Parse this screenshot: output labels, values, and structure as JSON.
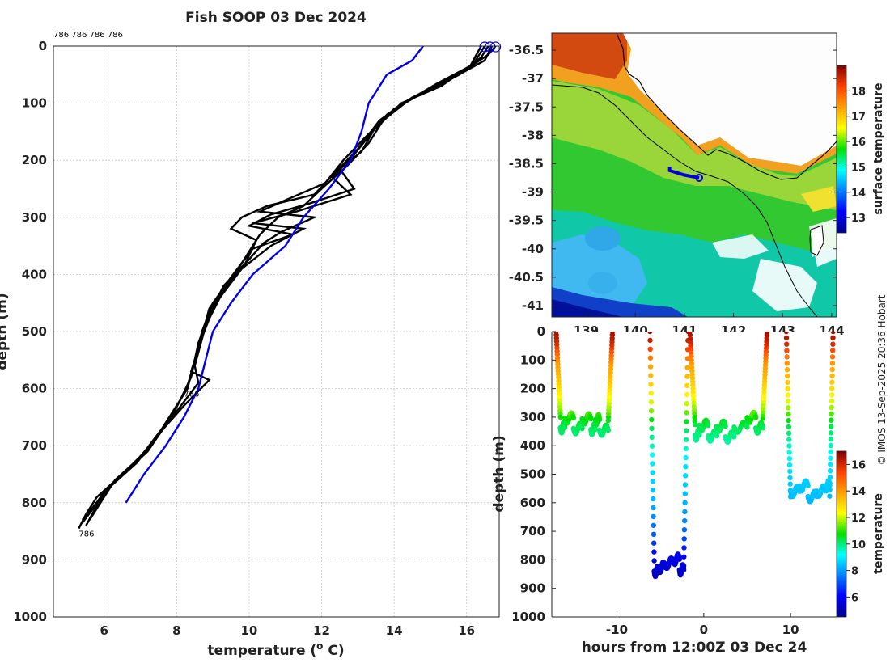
{
  "title": "Fish SOOP 03 Dec 2024",
  "credit": "© IMOS 13-Sep-2025 20:36 Hobart",
  "chart_data": [
    {
      "id": "profile",
      "type": "line",
      "xlabel": "temperature (°C)",
      "xlabel_parts": {
        "pre": "temperature (",
        "sup": "o",
        "post": " C)"
      },
      "ylabel": "depth (m)",
      "xlim": [
        4.6,
        16.9
      ],
      "ylim": [
        0,
        1000
      ],
      "xticks": [
        6,
        8,
        10,
        12,
        14,
        16
      ],
      "yticks": [
        0,
        100,
        200,
        300,
        400,
        500,
        600,
        700,
        800,
        900,
        1000
      ],
      "grid": true,
      "top_labels": "786 786 786 786",
      "annotations": [
        {
          "text": "786",
          "x": 8.2,
          "y": 600
        },
        {
          "text": "786",
          "x": 5.3,
          "y": 845
        }
      ],
      "surface_markers_x": [
        16.5,
        16.65,
        16.8
      ],
      "climatology": {
        "name": "climatology",
        "color": "#0000ee",
        "points": [
          [
            14.8,
            0
          ],
          [
            14.5,
            25
          ],
          [
            13.8,
            50
          ],
          [
            13.5,
            80
          ],
          [
            13.3,
            100
          ],
          [
            13.1,
            150
          ],
          [
            12.8,
            200
          ],
          [
            12.2,
            250
          ],
          [
            11.5,
            300
          ],
          [
            11.0,
            350
          ],
          [
            10.1,
            400
          ],
          [
            9.5,
            450
          ],
          [
            9.0,
            500
          ],
          [
            8.6,
            600
          ],
          [
            8.2,
            650
          ],
          [
            7.7,
            700
          ],
          [
            7.1,
            750
          ],
          [
            6.6,
            800
          ]
        ]
      },
      "casts": [
        {
          "name": "cast-1",
          "color": "#000000",
          "points": [
            [
              16.6,
              0
            ],
            [
              16.4,
              20
            ],
            [
              15.8,
              50
            ],
            [
              14.8,
              80
            ],
            [
              13.8,
              120
            ],
            [
              13.3,
              170
            ],
            [
              12.7,
              210
            ],
            [
              12.0,
              250
            ],
            [
              11.5,
              280
            ],
            [
              10.8,
              300
            ],
            [
              10.3,
              330
            ],
            [
              10.0,
              360
            ],
            [
              9.6,
              400
            ],
            [
              9.0,
              450
            ],
            [
              8.7,
              500
            ],
            [
              8.5,
              550
            ],
            [
              8.3,
              600
            ],
            [
              7.8,
              650
            ],
            [
              7.3,
              700
            ],
            [
              6.5,
              750
            ],
            [
              5.8,
              790
            ],
            [
              5.5,
              820
            ],
            [
              5.3,
              845
            ]
          ]
        },
        {
          "name": "cast-2",
          "color": "#000000",
          "points": [
            [
              16.7,
              0
            ],
            [
              16.5,
              25
            ],
            [
              15.5,
              60
            ],
            [
              14.5,
              90
            ],
            [
              13.6,
              130
            ],
            [
              13.0,
              180
            ],
            [
              12.4,
              220
            ],
            [
              11.8,
              260
            ],
            [
              10.5,
              280
            ],
            [
              9.8,
              300
            ],
            [
              9.5,
              320
            ],
            [
              10.2,
              340
            ],
            [
              9.9,
              380
            ],
            [
              9.3,
              420
            ],
            [
              8.9,
              470
            ],
            [
              8.6,
              520
            ],
            [
              8.4,
              580
            ],
            [
              8.1,
              620
            ],
            [
              7.6,
              670
            ],
            [
              7.0,
              720
            ],
            [
              6.3,
              760
            ],
            [
              5.9,
              800
            ],
            [
              5.6,
              830
            ]
          ]
        },
        {
          "name": "cast-3",
          "color": "#000000",
          "points": [
            [
              16.5,
              0
            ],
            [
              16.2,
              30
            ],
            [
              15.3,
              70
            ],
            [
              14.2,
              100
            ],
            [
              13.4,
              150
            ],
            [
              12.9,
              190
            ],
            [
              12.3,
              230
            ],
            [
              12.8,
              260
            ],
            [
              11.3,
              290
            ],
            [
              10.1,
              310
            ],
            [
              11.5,
              320
            ],
            [
              10.6,
              350
            ],
            [
              9.8,
              390
            ],
            [
              9.2,
              440
            ],
            [
              8.8,
              490
            ],
            [
              8.5,
              560
            ],
            [
              8.6,
              590
            ],
            [
              8.0,
              640
            ],
            [
              7.4,
              690
            ],
            [
              6.7,
              740
            ],
            [
              6.0,
              780
            ],
            [
              5.7,
              810
            ],
            [
              5.4,
              835
            ]
          ]
        },
        {
          "name": "cast-4",
          "color": "#000000",
          "points": [
            [
              16.8,
              0
            ],
            [
              16.6,
              15
            ],
            [
              16.0,
              40
            ],
            [
              15.0,
              75
            ],
            [
              14.0,
              110
            ],
            [
              13.2,
              160
            ],
            [
              12.6,
              200
            ],
            [
              12.1,
              240
            ],
            [
              11.0,
              270
            ],
            [
              10.3,
              290
            ],
            [
              11.8,
              300
            ],
            [
              10.9,
              325
            ],
            [
              10.4,
              345
            ],
            [
              9.7,
              395
            ],
            [
              9.1,
              445
            ],
            [
              8.7,
              510
            ],
            [
              8.4,
              570
            ],
            [
              8.9,
              585
            ],
            [
              8.2,
              630
            ],
            [
              7.5,
              680
            ],
            [
              6.9,
              730
            ],
            [
              6.2,
              770
            ],
            [
              5.8,
              805
            ],
            [
              5.5,
              840
            ]
          ]
        },
        {
          "name": "cast-5",
          "color": "#000000",
          "points": [
            [
              16.4,
              0
            ],
            [
              16.1,
              35
            ],
            [
              15.2,
              65
            ],
            [
              14.4,
              95
            ],
            [
              13.5,
              140
            ],
            [
              13.1,
              185
            ],
            [
              12.5,
              215
            ],
            [
              12.9,
              250
            ],
            [
              11.7,
              275
            ],
            [
              10.6,
              295
            ],
            [
              10.0,
              315
            ],
            [
              11.2,
              330
            ],
            [
              10.1,
              355
            ],
            [
              9.5,
              405
            ],
            [
              8.9,
              460
            ],
            [
              8.6,
              530
            ],
            [
              8.3,
              595
            ],
            [
              7.9,
              645
            ],
            [
              7.2,
              710
            ],
            [
              6.6,
              745
            ],
            [
              6.1,
              775
            ],
            [
              5.6,
              815
            ],
            [
              5.4,
              830
            ]
          ]
        }
      ]
    },
    {
      "id": "map",
      "type": "heatmap",
      "colorbar_label": "surface temperature",
      "cbar_range": [
        12.4,
        19.0
      ],
      "cbar_ticks": [
        13,
        14,
        15,
        16,
        17,
        18
      ],
      "xlim": [
        138.3,
        144.1
      ],
      "ylim": [
        -41.2,
        -36.2
      ],
      "xticks": [
        139,
        140,
        141,
        142,
        143,
        144
      ],
      "xtick_labels": [
        "139",
        "140",
        "141",
        "142",
        "143",
        "144"
      ],
      "yticks": [
        -36.5,
        -37,
        -37.5,
        -38,
        -38.5,
        -39,
        -39.5,
        -40,
        -40.5,
        -41
      ],
      "ytick_labels": [
        "-36.5",
        "-37",
        "-37.5",
        "-38",
        "-38.5",
        "-39",
        "-39.5",
        "-40",
        "-40.5",
        "-41"
      ],
      "track": [
        [
          141.3,
          -38.75
        ],
        [
          141.0,
          -38.7
        ],
        [
          140.7,
          -38.62
        ],
        [
          140.7,
          -38.55
        ]
      ]
    },
    {
      "id": "timeseries",
      "type": "scatter",
      "xlabel": "hours from 12:00Z 03 Dec 24",
      "ylabel": "depth (m)",
      "colorbar_label": "temperature",
      "cbar_range": [
        4.5,
        17.0
      ],
      "cbar_ticks": [
        6,
        8,
        10,
        12,
        14,
        16
      ],
      "xlim": [
        -17.5,
        15.3
      ],
      "ylim": [
        0,
        1000
      ],
      "xticks": [
        -10,
        0,
        10
      ],
      "yticks": [
        0,
        100,
        200,
        300,
        400,
        500,
        600,
        700,
        800,
        900,
        1000
      ],
      "casts": [
        {
          "times": [
            -17.0,
            -16.5,
            -16.0,
            -15.0,
            -14.0,
            -13.0,
            -12.5,
            -12.0,
            -11.0,
            -10.5
          ],
          "profile": "shallow"
        },
        {
          "times": [
            -6.2,
            -5.7,
            -5.2,
            -4.5,
            -3.5,
            -2.8,
            -2.3,
            -1.8
          ],
          "profile": "deep"
        },
        {
          "times": [
            -1.6,
            -1.0,
            -0.5,
            0.5,
            1.5,
            2.5,
            3.5,
            5.0,
            6.0,
            6.8,
            7.3
          ],
          "profile": "shallow"
        },
        {
          "times": [
            9.5,
            10.0,
            11.0,
            12.0,
            13.0,
            14.0,
            14.5,
            14.9
          ],
          "profile": "mid"
        }
      ]
    }
  ]
}
